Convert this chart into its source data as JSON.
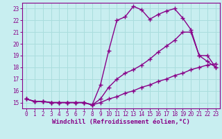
{
  "xlabel": "Windchill (Refroidissement éolien,°C)",
  "bg_color": "#c8eef0",
  "line_color": "#880088",
  "grid_color": "#aadddd",
  "xlim": [
    -0.5,
    23.5
  ],
  "ylim": [
    14.5,
    23.5
  ],
  "xticks": [
    0,
    1,
    2,
    3,
    4,
    5,
    6,
    7,
    8,
    9,
    10,
    11,
    12,
    13,
    14,
    15,
    16,
    17,
    18,
    19,
    20,
    21,
    22,
    23
  ],
  "yticks": [
    15,
    16,
    17,
    18,
    19,
    20,
    21,
    22,
    23
  ],
  "line1_x": [
    0,
    1,
    2,
    3,
    4,
    5,
    6,
    7,
    8,
    9,
    10,
    11,
    12,
    13,
    14,
    15,
    16,
    17,
    18,
    19,
    20,
    21,
    22,
    23
  ],
  "line1_y": [
    15.3,
    15.1,
    15.1,
    15.0,
    15.0,
    15.0,
    15.0,
    15.0,
    14.8,
    16.5,
    19.4,
    22.0,
    22.3,
    23.2,
    22.9,
    22.1,
    22.5,
    22.8,
    23.0,
    22.2,
    21.2,
    19.0,
    18.5,
    18.0
  ],
  "line2_x": [
    0,
    1,
    2,
    3,
    4,
    5,
    6,
    7,
    8,
    9,
    10,
    11,
    12,
    13,
    14,
    15,
    16,
    17,
    18,
    19,
    20,
    21,
    22,
    23
  ],
  "line2_y": [
    15.3,
    15.1,
    15.1,
    15.0,
    15.0,
    15.0,
    15.0,
    15.0,
    14.8,
    15.3,
    16.3,
    17.0,
    17.5,
    17.8,
    18.2,
    18.7,
    19.3,
    19.8,
    20.3,
    21.0,
    21.0,
    19.0,
    19.0,
    18.0
  ],
  "line3_x": [
    0,
    1,
    2,
    3,
    4,
    5,
    6,
    7,
    8,
    9,
    10,
    11,
    12,
    13,
    14,
    15,
    16,
    17,
    18,
    19,
    20,
    21,
    22,
    23
  ],
  "line3_y": [
    15.3,
    15.1,
    15.1,
    15.0,
    15.0,
    15.0,
    15.0,
    15.0,
    14.8,
    15.0,
    15.3,
    15.5,
    15.8,
    16.0,
    16.3,
    16.5,
    16.8,
    17.0,
    17.3,
    17.5,
    17.8,
    18.0,
    18.2,
    18.3
  ],
  "marker": "+",
  "markersize": 4,
  "linewidth": 1.0,
  "tick_fontsize": 5.5,
  "xlabel_fontsize": 6.5
}
